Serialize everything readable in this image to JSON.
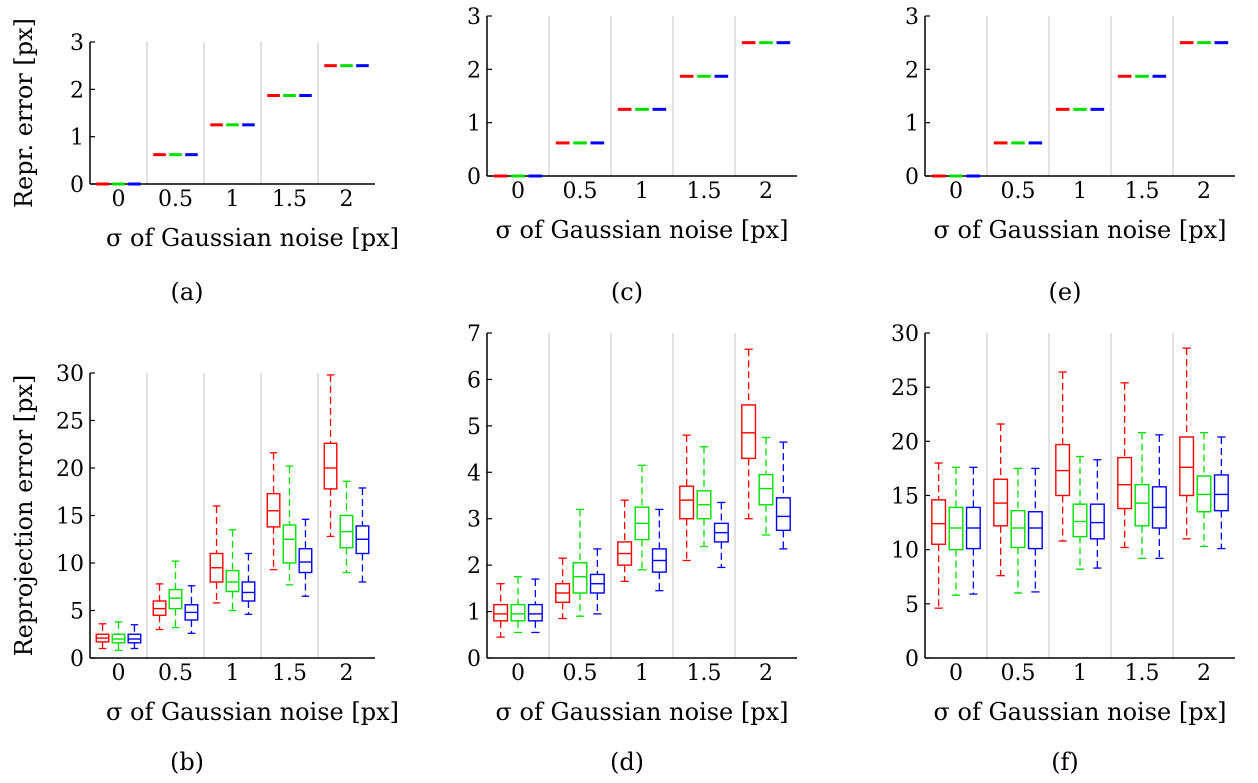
{
  "groups": [
    "0",
    "0.5",
    "1",
    "1.5",
    "2"
  ],
  "colors": {
    "red": "#ff0000",
    "green": "#00e000",
    "blue": "#0000ff",
    "separator": "#d9d9d9"
  },
  "chart_data": [
    {
      "type": "box",
      "caption": "(a)",
      "ylabel": "Repr. error [px]",
      "xlabel": "σ of Gaussian noise [px]",
      "ylim": [
        0,
        3
      ],
      "yticks": [
        "0",
        "1",
        "2",
        "3"
      ],
      "categories": [
        "0",
        "0.5",
        "1",
        "1.5",
        "2"
      ],
      "series": [
        {
          "color": "red",
          "boxes": [
            [
              0,
              0,
              0,
              0,
              0
            ],
            [
              0.62,
              0.62,
              0.62,
              0.62,
              0.62
            ],
            [
              1.25,
              1.25,
              1.25,
              1.25,
              1.25
            ],
            [
              1.87,
              1.87,
              1.87,
              1.87,
              1.87
            ],
            [
              2.5,
              2.5,
              2.5,
              2.5,
              2.5
            ]
          ]
        },
        {
          "color": "green",
          "boxes": [
            [
              0,
              0,
              0,
              0,
              0
            ],
            [
              0.62,
              0.62,
              0.62,
              0.62,
              0.62
            ],
            [
              1.25,
              1.25,
              1.25,
              1.25,
              1.25
            ],
            [
              1.87,
              1.87,
              1.87,
              1.87,
              1.87
            ],
            [
              2.5,
              2.5,
              2.5,
              2.5,
              2.5
            ]
          ]
        },
        {
          "color": "blue",
          "boxes": [
            [
              0,
              0,
              0,
              0,
              0
            ],
            [
              0.62,
              0.62,
              0.62,
              0.62,
              0.62
            ],
            [
              1.25,
              1.25,
              1.25,
              1.25,
              1.25
            ],
            [
              1.87,
              1.87,
              1.87,
              1.87,
              1.87
            ],
            [
              2.5,
              2.5,
              2.5,
              2.5,
              2.5
            ]
          ]
        }
      ]
    },
    {
      "type": "box",
      "caption": "(c)",
      "ylabel": "",
      "xlabel": "σ of Gaussian noise [px]",
      "ylim": [
        0,
        3
      ],
      "yticks": [
        "0",
        "1",
        "2",
        "3"
      ],
      "categories": [
        "0",
        "0.5",
        "1",
        "1.5",
        "2"
      ],
      "series": [
        {
          "color": "red",
          "boxes": [
            [
              0,
              0,
              0,
              0,
              0
            ],
            [
              0.62,
              0.62,
              0.62,
              0.62,
              0.62
            ],
            [
              1.25,
              1.25,
              1.25,
              1.25,
              1.25
            ],
            [
              1.87,
              1.87,
              1.87,
              1.87,
              1.87
            ],
            [
              2.5,
              2.5,
              2.5,
              2.5,
              2.5
            ]
          ]
        },
        {
          "color": "green",
          "boxes": [
            [
              0,
              0,
              0,
              0,
              0
            ],
            [
              0.62,
              0.62,
              0.62,
              0.62,
              0.62
            ],
            [
              1.25,
              1.25,
              1.25,
              1.25,
              1.25
            ],
            [
              1.87,
              1.87,
              1.87,
              1.87,
              1.87
            ],
            [
              2.5,
              2.5,
              2.5,
              2.5,
              2.5
            ]
          ]
        },
        {
          "color": "blue",
          "boxes": [
            [
              0,
              0,
              0,
              0,
              0
            ],
            [
              0.62,
              0.62,
              0.62,
              0.62,
              0.62
            ],
            [
              1.25,
              1.25,
              1.25,
              1.25,
              1.25
            ],
            [
              1.87,
              1.87,
              1.87,
              1.87,
              1.87
            ],
            [
              2.5,
              2.5,
              2.5,
              2.5,
              2.5
            ]
          ]
        }
      ]
    },
    {
      "type": "box",
      "caption": "(e)",
      "ylabel": "",
      "xlabel": "σ of Gaussian noise [px]",
      "ylim": [
        0,
        3
      ],
      "yticks": [
        "0",
        "1",
        "2",
        "3"
      ],
      "categories": [
        "0",
        "0.5",
        "1",
        "1.5",
        "2"
      ],
      "series": [
        {
          "color": "red",
          "boxes": [
            [
              0,
              0,
              0,
              0,
              0
            ],
            [
              0.62,
              0.62,
              0.62,
              0.62,
              0.62
            ],
            [
              1.25,
              1.25,
              1.25,
              1.25,
              1.25
            ],
            [
              1.87,
              1.87,
              1.87,
              1.87,
              1.87
            ],
            [
              2.5,
              2.5,
              2.5,
              2.5,
              2.5
            ]
          ]
        },
        {
          "color": "green",
          "boxes": [
            [
              0,
              0,
              0,
              0,
              0
            ],
            [
              0.62,
              0.62,
              0.62,
              0.62,
              0.62
            ],
            [
              1.25,
              1.25,
              1.25,
              1.25,
              1.25
            ],
            [
              1.87,
              1.87,
              1.87,
              1.87,
              1.87
            ],
            [
              2.5,
              2.5,
              2.5,
              2.5,
              2.5
            ]
          ]
        },
        {
          "color": "blue",
          "boxes": [
            [
              0,
              0,
              0,
              0,
              0
            ],
            [
              0.62,
              0.62,
              0.62,
              0.62,
              0.62
            ],
            [
              1.25,
              1.25,
              1.25,
              1.25,
              1.25
            ],
            [
              1.87,
              1.87,
              1.87,
              1.87,
              1.87
            ],
            [
              2.5,
              2.5,
              2.5,
              2.5,
              2.5
            ]
          ]
        }
      ]
    },
    {
      "type": "box",
      "caption": "(b)",
      "ylabel": "Reprojection error [px]",
      "xlabel": "σ of Gaussian noise [px]",
      "ylim": [
        0,
        30
      ],
      "yticks": [
        "0",
        "5",
        "10",
        "15",
        "20",
        "25",
        "30"
      ],
      "categories": [
        "0",
        "0.5",
        "1",
        "1.5",
        "2"
      ],
      "series": [
        {
          "color": "red",
          "boxes": [
            [
              1.0,
              1.7,
              2.1,
              2.5,
              3.6
            ],
            [
              3.0,
              4.5,
              5.2,
              6.0,
              7.8
            ],
            [
              5.8,
              8.0,
              9.5,
              11.0,
              16.0
            ],
            [
              9.3,
              13.8,
              15.5,
              17.3,
              21.6
            ],
            [
              12.8,
              17.8,
              20.0,
              22.6,
              29.8
            ]
          ]
        },
        {
          "color": "green",
          "boxes": [
            [
              0.8,
              1.6,
              2.0,
              2.5,
              3.8
            ],
            [
              3.2,
              5.2,
              6.3,
              7.2,
              10.2
            ],
            [
              5.0,
              7.0,
              8.0,
              9.2,
              13.5
            ],
            [
              7.7,
              10.0,
              12.5,
              14.0,
              20.2
            ],
            [
              9.0,
              11.6,
              13.3,
              15.0,
              18.6
            ]
          ]
        },
        {
          "color": "blue",
          "boxes": [
            [
              1.0,
              1.6,
              2.0,
              2.5,
              3.5
            ],
            [
              2.6,
              4.0,
              4.8,
              5.6,
              7.6
            ],
            [
              4.6,
              6.0,
              6.9,
              8.0,
              11.0
            ],
            [
              6.5,
              9.0,
              10.1,
              11.5,
              14.6
            ],
            [
              8.0,
              11.0,
              12.5,
              13.9,
              17.9
            ]
          ]
        }
      ]
    },
    {
      "type": "box",
      "caption": "(d)",
      "ylabel": "",
      "xlabel": "σ of Gaussian noise [px]",
      "ylim": [
        0,
        7
      ],
      "yticks": [
        "0",
        "1",
        "2",
        "3",
        "4",
        "5",
        "6",
        "7"
      ],
      "categories": [
        "0",
        "0.5",
        "1",
        "1.5",
        "2"
      ],
      "series": [
        {
          "color": "red",
          "boxes": [
            [
              0.45,
              0.8,
              0.95,
              1.15,
              1.6
            ],
            [
              0.85,
              1.2,
              1.4,
              1.6,
              2.15
            ],
            [
              1.65,
              2.0,
              2.25,
              2.5,
              3.4
            ],
            [
              2.1,
              3.0,
              3.4,
              3.7,
              4.8
            ],
            [
              3.0,
              4.3,
              4.85,
              5.45,
              6.65
            ]
          ]
        },
        {
          "color": "green",
          "boxes": [
            [
              0.55,
              0.8,
              0.95,
              1.15,
              1.75
            ],
            [
              0.9,
              1.4,
              1.75,
              2.05,
              3.2
            ],
            [
              1.9,
              2.55,
              2.9,
              3.25,
              4.15
            ],
            [
              2.4,
              3.0,
              3.3,
              3.6,
              4.55
            ],
            [
              2.65,
              3.3,
              3.65,
              3.95,
              4.75
            ]
          ]
        },
        {
          "color": "blue",
          "boxes": [
            [
              0.55,
              0.8,
              0.95,
              1.15,
              1.7
            ],
            [
              0.95,
              1.4,
              1.6,
              1.8,
              2.35
            ],
            [
              1.45,
              1.85,
              2.1,
              2.35,
              3.2
            ],
            [
              1.95,
              2.5,
              2.7,
              2.9,
              3.35
            ],
            [
              2.35,
              2.75,
              3.05,
              3.45,
              4.65
            ]
          ]
        }
      ]
    },
    {
      "type": "box",
      "caption": "(f)",
      "ylabel": "",
      "xlabel": "σ of Gaussian noise [px]",
      "ylim": [
        0,
        30
      ],
      "yticks": [
        "0",
        "5",
        "10",
        "15",
        "20",
        "25",
        "30"
      ],
      "categories": [
        "0",
        "0.5",
        "1",
        "1.5",
        "2"
      ],
      "series": [
        {
          "color": "red",
          "boxes": [
            [
              4.6,
              10.5,
              12.4,
              14.6,
              18.0
            ],
            [
              7.6,
              12.2,
              14.3,
              16.5,
              21.6
            ],
            [
              10.8,
              15.0,
              17.3,
              19.7,
              26.4
            ],
            [
              10.2,
              13.8,
              16.0,
              18.5,
              25.4
            ],
            [
              11.0,
              15.0,
              17.6,
              20.4,
              28.6
            ]
          ]
        },
        {
          "color": "green",
          "boxes": [
            [
              5.8,
              10.0,
              12.0,
              13.9,
              17.6
            ],
            [
              6.0,
              10.2,
              12.0,
              13.6,
              17.5
            ],
            [
              8.2,
              11.2,
              12.6,
              14.2,
              18.6
            ],
            [
              9.2,
              12.2,
              14.3,
              16.0,
              20.8
            ],
            [
              10.3,
              13.5,
              15.1,
              16.8,
              20.8
            ]
          ]
        },
        {
          "color": "blue",
          "boxes": [
            [
              5.9,
              10.1,
              12.0,
              13.9,
              17.6
            ],
            [
              6.1,
              10.1,
              12.0,
              13.5,
              17.5
            ],
            [
              8.3,
              11.0,
              12.5,
              14.2,
              18.3
            ],
            [
              9.2,
              12.0,
              13.9,
              15.8,
              20.6
            ],
            [
              10.1,
              13.6,
              15.1,
              16.9,
              20.4
            ]
          ]
        }
      ]
    }
  ]
}
